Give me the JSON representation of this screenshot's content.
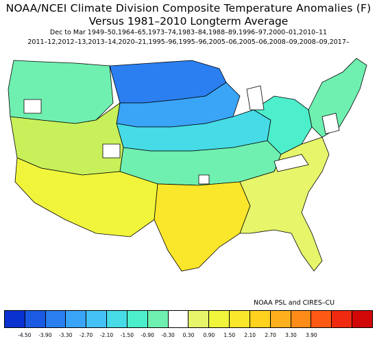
{
  "title_line1": "NOAA/NCEI Climate Division Composite Temperature Anomalies (F)",
  "title_line2": "Versus 1981–2010 Longterm Average",
  "subtitle_line1": "Dec to Mar   1949–50,1964–65,1973–74,1983–84,1988–89,1996–97,2000–01,2010–11",
  "subtitle_line2": "2011–12,2012–13,2013–14,2020–21,1995–96,1995–96,2005–06,2005–06,2008–09,2008–09,2017–",
  "credit": "NOAA PSL and CIRES–CU",
  "legend": {
    "colors": [
      "#0a32d0",
      "#1b5be3",
      "#2b7ff0",
      "#3aa4f7",
      "#45c2f5",
      "#46dbe6",
      "#4deecb",
      "#6ff0b0",
      "#ffffff",
      "#e6f56a",
      "#f0f53c",
      "#fae62a",
      "#ffd21e",
      "#ffb01c",
      "#ff8c18",
      "#ff5a14",
      "#f02a10",
      "#d20808"
    ],
    "tick_labels": [
      "-4.50",
      "-3.90",
      "-3.30",
      "-2.70",
      "-2.10",
      "-1.50",
      "-0.90",
      "-0.30",
      "0.30",
      "0.90",
      "1.50",
      "2.10",
      "2.70",
      "3.30",
      "3.90"
    ]
  },
  "map_regions": {
    "north_central": "#2b7ff0",
    "northern_plains": "#3aa4f7",
    "upper_midwest": "#46dbe6",
    "great_lakes": "#4deecb",
    "central": "#6ff0b0",
    "northwest": "#6ff0b0",
    "interior_west": "#c8f05a",
    "southwest": "#f0f53c",
    "south": "#fae62a",
    "southeast": "#e6f56a",
    "northeast": "#6ff0b0",
    "missing": "#ffffff"
  }
}
